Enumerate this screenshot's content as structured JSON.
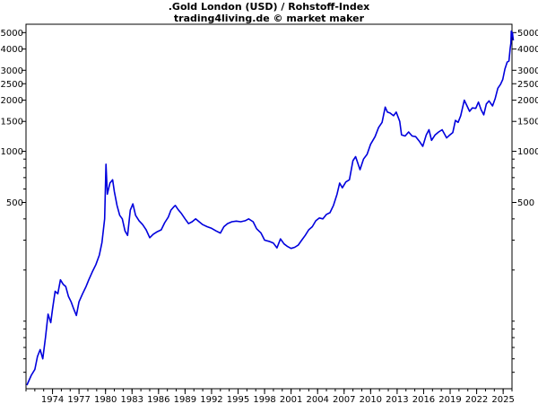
{
  "header": {
    "title": ".Gold London (USD) / Rohstoff-Index",
    "subtitle": "trading4living.de © market maker"
  },
  "chart_data": {
    "type": "line",
    "title": ".Gold London (USD) / Rohstoff-Index",
    "subtitle": "trading4living.de © market maker",
    "xlabel": "",
    "ylabel": "",
    "y_scale": "log",
    "xlim": [
      1971.0,
      2026.0
    ],
    "ylim": [
      40,
      5600
    ],
    "grid": false,
    "line_color": "#0000dd",
    "y_ticks": [
      {
        "value": 5000,
        "label": "5000"
      },
      {
        "value": 4000,
        "label": "4000"
      },
      {
        "value": 3000,
        "label": "3000"
      },
      {
        "value": 2500,
        "label": "2500"
      },
      {
        "value": 2000,
        "label": "2000"
      },
      {
        "value": 1500,
        "label": "1500"
      },
      {
        "value": 1000,
        "label": "1000"
      },
      {
        "value": 500,
        "label": "500"
      }
    ],
    "y_minor_ticks": [
      50,
      60,
      70,
      80,
      90,
      100,
      200,
      300,
      400,
      600,
      700,
      800,
      900
    ],
    "x_ticks": [
      {
        "value": 1974,
        "label": "1974"
      },
      {
        "value": 1977,
        "label": "1977"
      },
      {
        "value": 1980,
        "label": "1980"
      },
      {
        "value": 1983,
        "label": "1983"
      },
      {
        "value": 1986,
        "label": "1986"
      },
      {
        "value": 1989,
        "label": "1989"
      },
      {
        "value": 1992,
        "label": "1992"
      },
      {
        "value": 1995,
        "label": "1995"
      },
      {
        "value": 1998,
        "label": "1998"
      },
      {
        "value": 2001,
        "label": "2001"
      },
      {
        "value": 2004,
        "label": "2004"
      },
      {
        "value": 2007,
        "label": "2007"
      },
      {
        "value": 2010,
        "label": "2010"
      },
      {
        "value": 2013,
        "label": "2013"
      },
      {
        "value": 2016,
        "label": "2016"
      },
      {
        "value": 2019,
        "label": "2019"
      },
      {
        "value": 2022,
        "label": "2022"
      },
      {
        "value": 2025,
        "label": "2025"
      }
    ],
    "series": [
      {
        "points": [
          [
            1971.1,
            42
          ],
          [
            1971.6,
            48
          ],
          [
            1972.0,
            52
          ],
          [
            1972.3,
            62
          ],
          [
            1972.6,
            68
          ],
          [
            1972.9,
            60
          ],
          [
            1973.2,
            80
          ],
          [
            1973.5,
            110
          ],
          [
            1973.8,
            98
          ],
          [
            1974.0,
            118
          ],
          [
            1974.3,
            150
          ],
          [
            1974.6,
            145
          ],
          [
            1974.9,
            175
          ],
          [
            1975.2,
            165
          ],
          [
            1975.5,
            160
          ],
          [
            1975.8,
            140
          ],
          [
            1976.1,
            130
          ],
          [
            1976.4,
            118
          ],
          [
            1976.7,
            108
          ],
          [
            1977.0,
            130
          ],
          [
            1977.4,
            145
          ],
          [
            1977.8,
            160
          ],
          [
            1978.1,
            175
          ],
          [
            1978.5,
            195
          ],
          [
            1978.9,
            215
          ],
          [
            1979.3,
            245
          ],
          [
            1979.6,
            290
          ],
          [
            1979.9,
            400
          ],
          [
            1980.05,
            840
          ],
          [
            1980.2,
            560
          ],
          [
            1980.5,
            650
          ],
          [
            1980.8,
            680
          ],
          [
            1981.0,
            580
          ],
          [
            1981.3,
            480
          ],
          [
            1981.6,
            420
          ],
          [
            1981.9,
            400
          ],
          [
            1982.2,
            340
          ],
          [
            1982.5,
            320
          ],
          [
            1982.8,
            450
          ],
          [
            1983.1,
            490
          ],
          [
            1983.4,
            420
          ],
          [
            1983.8,
            390
          ],
          [
            1984.2,
            370
          ],
          [
            1984.6,
            345
          ],
          [
            1985.0,
            310
          ],
          [
            1985.4,
            325
          ],
          [
            1985.8,
            335
          ],
          [
            1986.3,
            345
          ],
          [
            1986.7,
            380
          ],
          [
            1987.1,
            410
          ],
          [
            1987.4,
            450
          ],
          [
            1987.7,
            470
          ],
          [
            1987.9,
            480
          ],
          [
            1988.2,
            455
          ],
          [
            1988.6,
            430
          ],
          [
            1989.0,
            400
          ],
          [
            1989.4,
            375
          ],
          [
            1989.8,
            385
          ],
          [
            1990.2,
            400
          ],
          [
            1990.6,
            385
          ],
          [
            1991.0,
            370
          ],
          [
            1991.5,
            360
          ],
          [
            1992.0,
            352
          ],
          [
            1992.5,
            340
          ],
          [
            1993.0,
            330
          ],
          [
            1993.4,
            360
          ],
          [
            1993.8,
            375
          ],
          [
            1994.3,
            385
          ],
          [
            1994.8,
            388
          ],
          [
            1995.3,
            385
          ],
          [
            1995.8,
            390
          ],
          [
            1996.2,
            400
          ],
          [
            1996.7,
            385
          ],
          [
            1997.1,
            350
          ],
          [
            1997.6,
            330
          ],
          [
            1998.0,
            300
          ],
          [
            1998.5,
            295
          ],
          [
            1999.0,
            288
          ],
          [
            1999.4,
            270
          ],
          [
            1999.8,
            305
          ],
          [
            2000.2,
            285
          ],
          [
            2000.6,
            275
          ],
          [
            2001.0,
            268
          ],
          [
            2001.4,
            272
          ],
          [
            2001.8,
            280
          ],
          [
            2002.2,
            300
          ],
          [
            2002.6,
            320
          ],
          [
            2003.0,
            345
          ],
          [
            2003.4,
            360
          ],
          [
            2003.8,
            390
          ],
          [
            2004.2,
            405
          ],
          [
            2004.6,
            400
          ],
          [
            2005.0,
            425
          ],
          [
            2005.4,
            435
          ],
          [
            2005.8,
            480
          ],
          [
            2006.2,
            560
          ],
          [
            2006.5,
            650
          ],
          [
            2006.8,
            610
          ],
          [
            2007.2,
            660
          ],
          [
            2007.6,
            680
          ],
          [
            2008.0,
            880
          ],
          [
            2008.3,
            930
          ],
          [
            2008.8,
            780
          ],
          [
            2009.2,
            900
          ],
          [
            2009.6,
            960
          ],
          [
            2010.0,
            1100
          ],
          [
            2010.5,
            1220
          ],
          [
            2010.9,
            1380
          ],
          [
            2011.3,
            1480
          ],
          [
            2011.65,
            1820
          ],
          [
            2011.9,
            1700
          ],
          [
            2012.2,
            1680
          ],
          [
            2012.6,
            1620
          ],
          [
            2012.9,
            1700
          ],
          [
            2013.3,
            1500
          ],
          [
            2013.5,
            1250
          ],
          [
            2013.9,
            1230
          ],
          [
            2014.3,
            1300
          ],
          [
            2014.7,
            1230
          ],
          [
            2015.1,
            1220
          ],
          [
            2015.5,
            1150
          ],
          [
            2015.9,
            1070
          ],
          [
            2016.3,
            1250
          ],
          [
            2016.6,
            1340
          ],
          [
            2016.9,
            1160
          ],
          [
            2017.3,
            1250
          ],
          [
            2017.7,
            1300
          ],
          [
            2018.1,
            1340
          ],
          [
            2018.6,
            1200
          ],
          [
            2018.9,
            1240
          ],
          [
            2019.3,
            1290
          ],
          [
            2019.6,
            1520
          ],
          [
            2019.9,
            1480
          ],
          [
            2020.2,
            1620
          ],
          [
            2020.6,
            2000
          ],
          [
            2020.9,
            1860
          ],
          [
            2021.2,
            1720
          ],
          [
            2021.5,
            1800
          ],
          [
            2021.9,
            1790
          ],
          [
            2022.2,
            1950
          ],
          [
            2022.5,
            1760
          ],
          [
            2022.8,
            1640
          ],
          [
            2023.1,
            1900
          ],
          [
            2023.4,
            1980
          ],
          [
            2023.8,
            1850
          ],
          [
            2024.1,
            2050
          ],
          [
            2024.4,
            2350
          ],
          [
            2024.7,
            2480
          ],
          [
            2024.95,
            2650
          ],
          [
            2025.2,
            3050
          ],
          [
            2025.45,
            3350
          ],
          [
            2025.65,
            3400
          ],
          [
            2025.8,
            4050
          ],
          [
            2025.88,
            4350
          ],
          [
            2025.92,
            5100
          ],
          [
            2025.97,
            4750
          ],
          [
            2026.05,
            5000
          ],
          [
            2026.1,
            4700
          ],
          [
            2026.15,
            4500
          ]
        ]
      }
    ]
  }
}
